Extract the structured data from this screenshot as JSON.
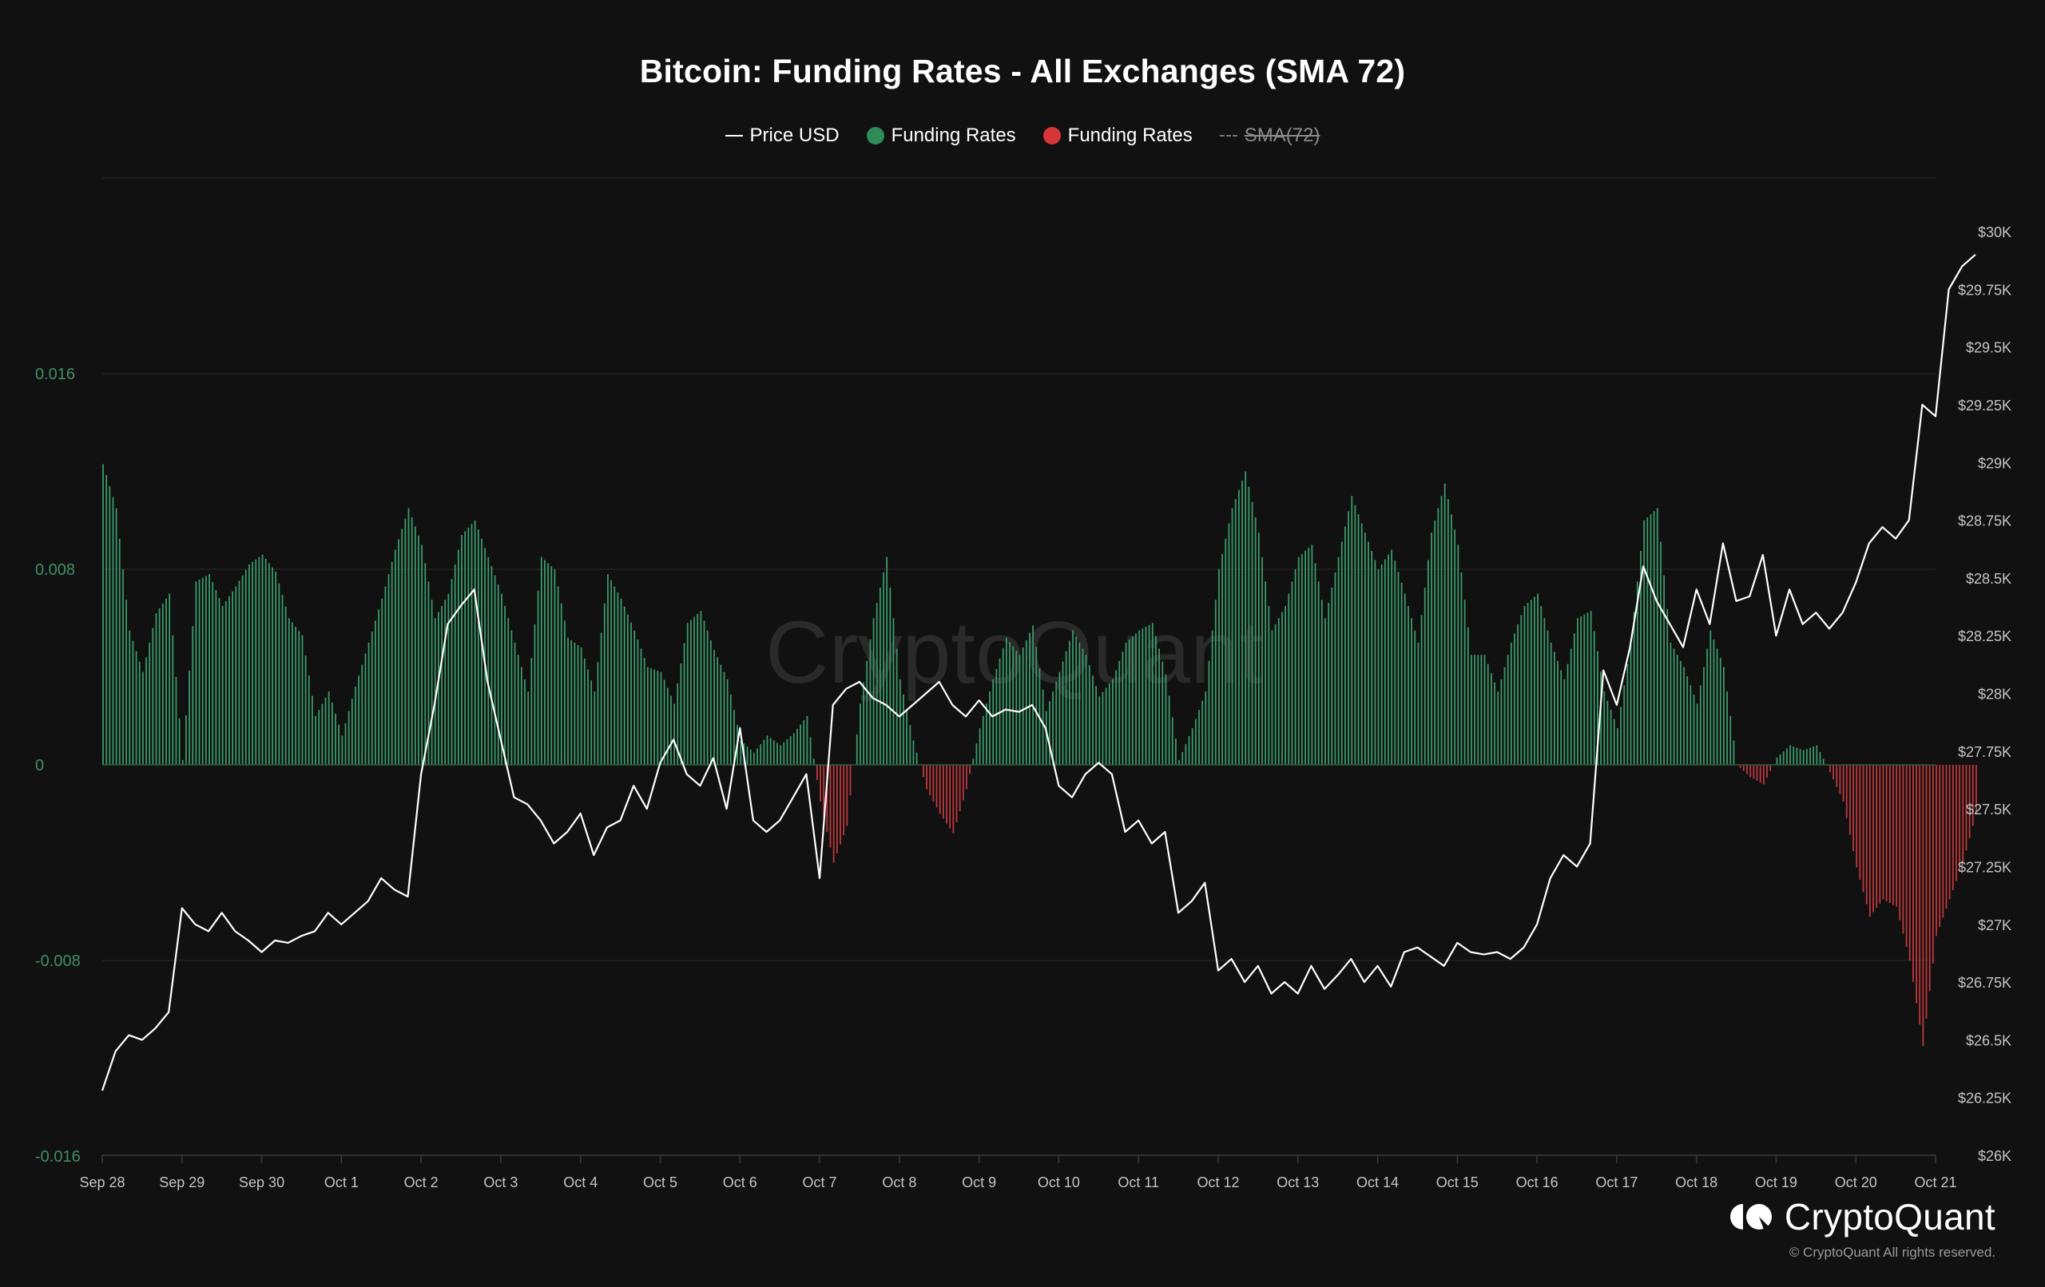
{
  "title": "Bitcoin: Funding Rates - All Exchanges (SMA 72)",
  "legend": [
    {
      "label": "Price USD",
      "marker": "line",
      "color": "#ffffff",
      "enabled": true
    },
    {
      "label": "Funding Rates",
      "marker": "dot",
      "color": "#2e8b57",
      "enabled": true
    },
    {
      "label": "Funding Rates",
      "marker": "dot",
      "color": "#d63638",
      "enabled": true
    },
    {
      "label": "SMA(72)",
      "marker": "dash",
      "color": "#777777",
      "enabled": false
    }
  ],
  "watermark": "CryptoQuant",
  "brand": {
    "name": "CryptoQuant",
    "copyright": "© CryptoQuant All rights reserved."
  },
  "colors": {
    "background": "#111111",
    "positive": "#3a9a6a",
    "negative": "#c0393d",
    "price": "#ffffff",
    "grid": "#222222",
    "left_axis": "#3f8f63",
    "right_axis": "#c4c4c4"
  },
  "chart_data": {
    "type": "bar+line",
    "title": "Bitcoin: Funding Rates - All Exchanges (SMA 72)",
    "xlabel": "",
    "ylabel_left": "Funding Rates",
    "ylabel_right": "Price USD",
    "x_ticks": [
      "Sep 28",
      "Sep 29",
      "Sep 30",
      "Oct 1",
      "Oct 2",
      "Oct 3",
      "Oct 4",
      "Oct 5",
      "Oct 6",
      "Oct 7",
      "Oct 8",
      "Oct 9",
      "Oct 10",
      "Oct 11",
      "Oct 12",
      "Oct 13",
      "Oct 14",
      "Oct 15",
      "Oct 16",
      "Oct 17",
      "Oct 18",
      "Oct 19",
      "Oct 20",
      "Oct 21"
    ],
    "y_left_ticks": [
      "0.016",
      "0.008",
      "0",
      "-0.008",
      "-0.016"
    ],
    "y_left_range": [
      -0.016,
      0.024
    ],
    "y_right_ticks": [
      "$30K",
      "$29.75K",
      "$29.5K",
      "$29.25K",
      "$29K",
      "$28.75K",
      "$28.5K",
      "$28.25K",
      "$28K",
      "$27.75K",
      "$27.5K",
      "$27.25K",
      "$27K",
      "$26.75K",
      "$26.5K",
      "$26.25K",
      "$26K"
    ],
    "y_right_range": [
      26000,
      30000
    ],
    "sample_interval": "4h",
    "start": "Sep 28",
    "grid": true,
    "legend_position": "top-center",
    "series": [
      {
        "name": "Funding Rates (SMA 72)",
        "type": "bar",
        "unit": "x0.001",
        "values": [
          12.3,
          10.5,
          5.5,
          3.8,
          6.2,
          7.0,
          0.2,
          7.5,
          7.8,
          6.5,
          7.3,
          8.2,
          8.6,
          7.9,
          6.0,
          5.3,
          2.0,
          3.0,
          1.2,
          3.2,
          5.0,
          6.8,
          8.8,
          10.5,
          9.0,
          6.0,
          7.0,
          9.4,
          10.0,
          8.5,
          7.0,
          5.0,
          3.0,
          8.5,
          8.0,
          5.2,
          4.8,
          3.0,
          7.8,
          6.8,
          5.5,
          4.0,
          3.8,
          2.5,
          5.8,
          6.3,
          4.7,
          3.5,
          1.0,
          0.5,
          1.2,
          0.8,
          1.3,
          2.0,
          -1.5,
          -4.0,
          -2.5,
          2.5,
          6.0,
          8.5,
          3.5,
          1.0,
          -1.0,
          -2.0,
          -2.8,
          -1.0,
          1.5,
          3.5,
          5.2,
          4.5,
          5.7,
          2.2,
          3.8,
          5.5,
          4.5,
          2.8,
          3.5,
          5.0,
          5.5,
          5.8,
          3.7,
          0.2,
          1.5,
          3.0,
          8.0,
          10.5,
          12.0,
          9.5,
          5.5,
          6.5,
          8.5,
          9.0,
          6.0,
          8.5,
          11.0,
          9.5,
          8.0,
          8.8,
          7.0,
          5.0,
          9.5,
          11.5,
          9.0,
          4.5,
          4.5,
          3.0,
          5.0,
          6.5,
          7.0,
          5.0,
          3.5,
          6.0,
          6.3,
          3.0,
          1.5,
          5.0,
          10.0,
          10.5,
          5.0,
          4.0,
          2.5,
          5.5,
          4.0,
          0.0,
          -0.5,
          -0.8,
          0.3,
          0.8,
          0.6,
          0.8,
          -0.3,
          -1.5,
          -4.2,
          -6.2,
          -5.5,
          -5.8,
          -8.0,
          -11.5,
          -7.0,
          -5.5,
          -4.0,
          -2.0
        ]
      },
      {
        "name": "Price USD",
        "type": "line",
        "unit": "$K",
        "values": [
          26.28,
          26.45,
          26.52,
          26.5,
          26.55,
          26.62,
          27.07,
          27.0,
          26.97,
          27.05,
          26.97,
          26.93,
          26.88,
          26.93,
          26.92,
          26.95,
          26.97,
          27.05,
          27.0,
          27.05,
          27.1,
          27.2,
          27.15,
          27.12,
          27.65,
          27.95,
          28.3,
          28.38,
          28.45,
          28.05,
          27.8,
          27.55,
          27.52,
          27.45,
          27.35,
          27.4,
          27.48,
          27.3,
          27.42,
          27.45,
          27.6,
          27.5,
          27.7,
          27.8,
          27.65,
          27.6,
          27.72,
          27.5,
          27.85,
          27.45,
          27.4,
          27.45,
          27.55,
          27.65,
          27.2,
          27.95,
          28.02,
          28.05,
          27.98,
          27.95,
          27.9,
          27.95,
          28.0,
          28.05,
          27.95,
          27.9,
          27.97,
          27.9,
          27.93,
          27.92,
          27.95,
          27.85,
          27.6,
          27.55,
          27.65,
          27.7,
          27.65,
          27.4,
          27.45,
          27.35,
          27.4,
          27.05,
          27.1,
          27.18,
          26.8,
          26.85,
          26.75,
          26.82,
          26.7,
          26.75,
          26.7,
          26.82,
          26.72,
          26.78,
          26.85,
          26.75,
          26.82,
          26.73,
          26.88,
          26.9,
          26.86,
          26.82,
          26.92,
          26.88,
          26.87,
          26.88,
          26.85,
          26.9,
          27.0,
          27.2,
          27.3,
          27.25,
          27.35,
          28.1,
          27.95,
          28.2,
          28.55,
          28.4,
          28.3,
          28.2,
          28.45,
          28.3,
          28.65,
          28.4,
          28.42,
          28.6,
          28.25,
          28.45,
          28.3,
          28.35,
          28.28,
          28.35,
          28.48,
          28.65,
          28.72,
          28.67,
          28.75,
          29.25,
          29.2,
          29.75,
          29.85,
          29.9
        ]
      }
    ]
  }
}
